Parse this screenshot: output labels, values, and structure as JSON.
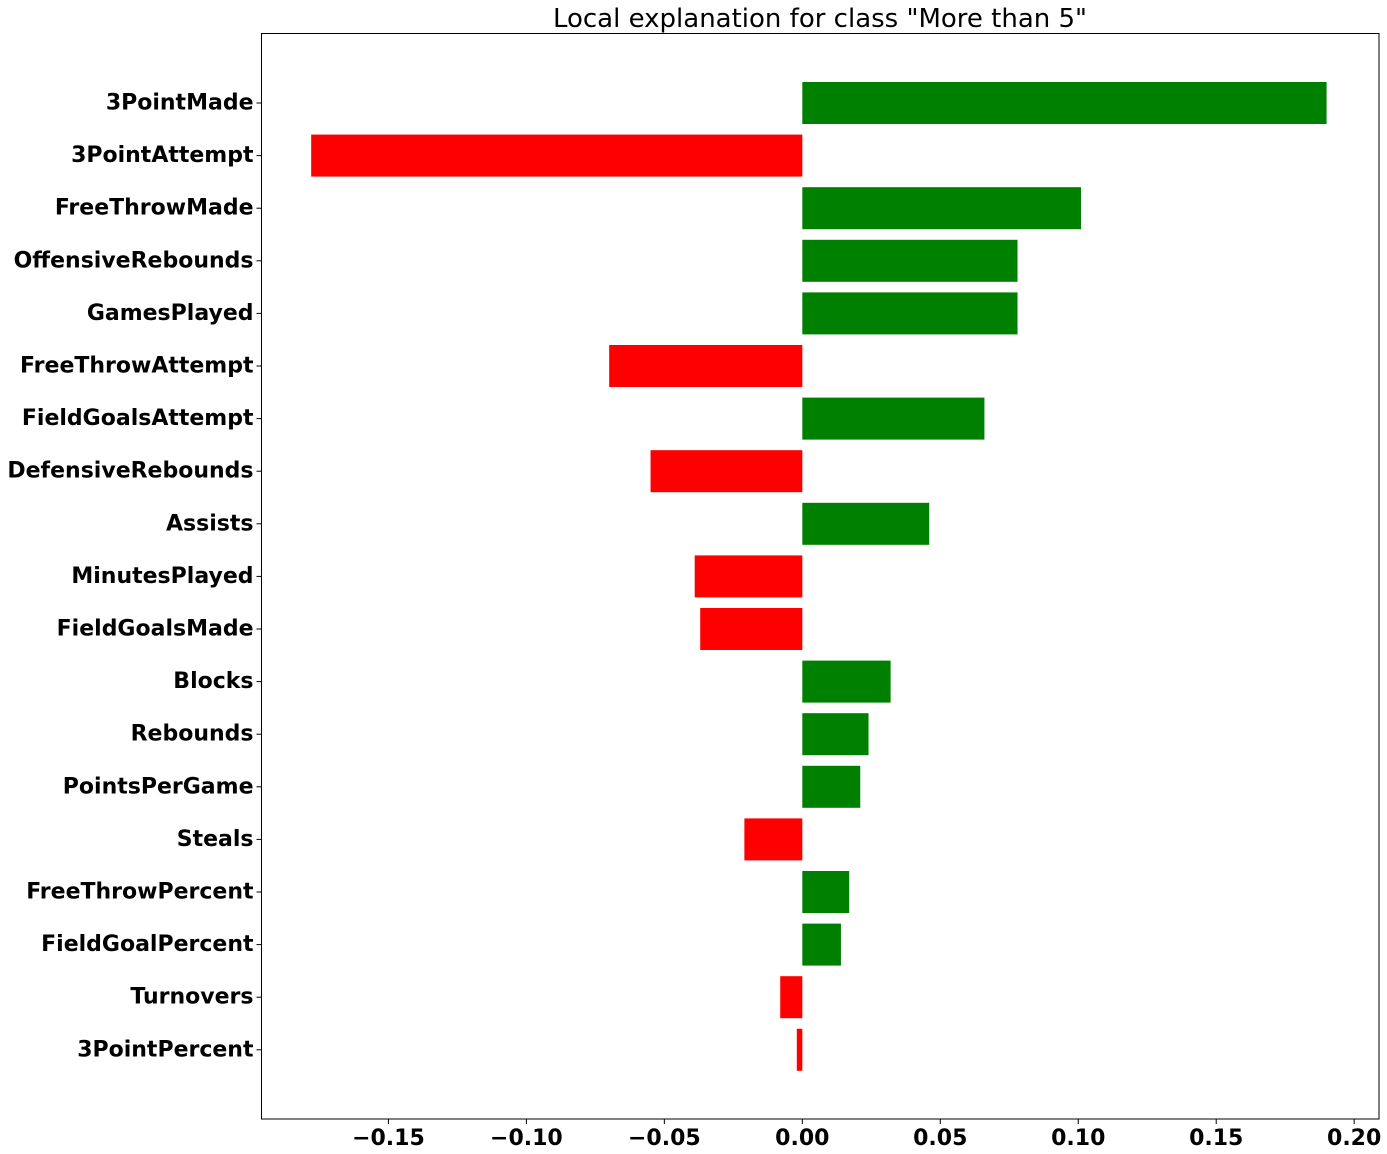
{
  "chart_data": {
    "type": "bar",
    "orientation": "horizontal",
    "title": "Local explanation for class \"More than 5\"",
    "xlabel": "",
    "ylabel": "",
    "xlim": [
      -0.196,
      0.209
    ],
    "xticks": [
      -0.15,
      -0.1,
      -0.05,
      0.0,
      0.05,
      0.1,
      0.15,
      0.2
    ],
    "xtick_labels": [
      "−0.15",
      "−0.10",
      "−0.05",
      "0.00",
      "0.05",
      "0.10",
      "0.15",
      "0.20"
    ],
    "grid": false,
    "positive_color": "#008000",
    "negative_color": "#ff0000",
    "categories": [
      "3PointMade",
      "3PointAttempt",
      "FreeThrowMade",
      "OffensiveRebounds",
      "GamesPlayed",
      "FreeThrowAttempt",
      "FieldGoalsAttempt",
      "DefensiveRebounds",
      "Assists",
      "MinutesPlayed",
      "FieldGoalsMade",
      "Blocks",
      "Rebounds",
      "PointsPerGame",
      "Steals",
      "FreeThrowPercent",
      "FieldGoalPercent",
      "Turnovers",
      "3PointPercent"
    ],
    "values": [
      0.19,
      -0.178,
      0.101,
      0.078,
      0.078,
      -0.07,
      0.066,
      -0.055,
      0.046,
      -0.039,
      -0.037,
      0.032,
      0.024,
      0.021,
      -0.021,
      0.017,
      0.014,
      -0.008,
      -0.002
    ]
  }
}
